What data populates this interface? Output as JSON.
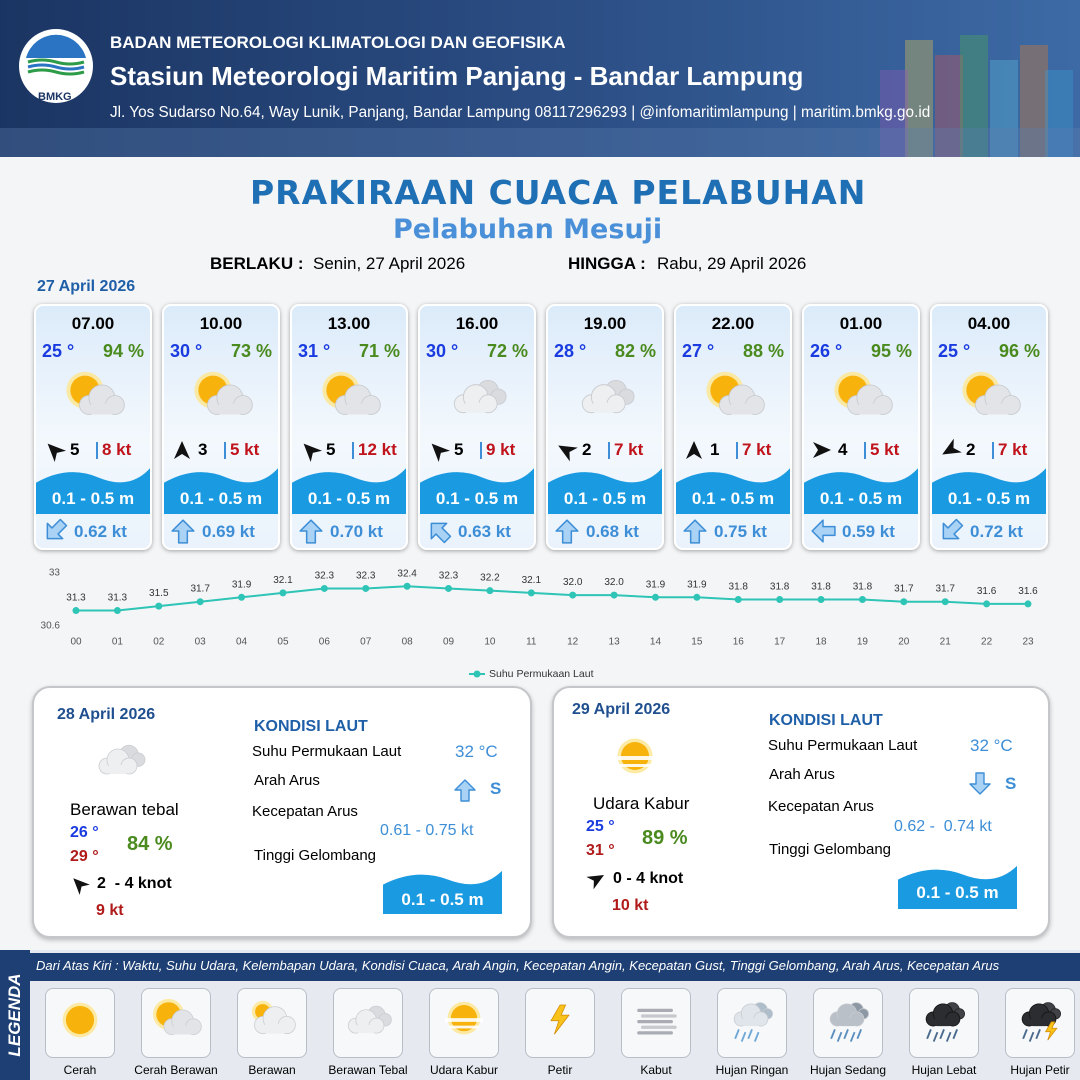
{
  "header": {
    "logo_text": "BMKG",
    "agency": "BADAN METEOROLOGI KLIMATOLOGI DAN GEOFISIKA",
    "station": "Stasiun Meteorologi Maritim Panjang - Bandar Lampung",
    "address": "Jl. Yos Sudarso No.64, Way Lunik, Panjang, Bandar Lampung 08117296293 | @infomaritimlampung | maritim.bmkg.go.id"
  },
  "title": "PRAKIRAAN CUACA PELABUHAN",
  "subtitle": "Pelabuhan Mesuji",
  "validity": {
    "from_label": "BERLAKU :",
    "from": "Senin, 27 April 2026",
    "to_label": "HINGGA :",
    "to": "Rabu, 29 April 2026"
  },
  "day1": {
    "date": "27 April 2026",
    "forecasts": [
      {
        "time": "07.00",
        "temp": "25 °",
        "humidity": "94 %",
        "wind": "5",
        "gust": "8 kt",
        "wave": "0.1 - 0.5 m",
        "current": "0.62 kt"
      },
      {
        "time": "10.00",
        "temp": "30 °",
        "humidity": "73 %",
        "wind": "3",
        "gust": "5 kt",
        "wave": "0.1 - 0.5 m",
        "current": "0.69 kt"
      },
      {
        "time": "13.00",
        "temp": "31 °",
        "humidity": "71 %",
        "wind": "5",
        "gust": "12 kt",
        "wave": "0.1 - 0.5 m",
        "current": "0.70 kt"
      },
      {
        "time": "16.00",
        "temp": "30 °",
        "humidity": "72 %",
        "wind": "5",
        "gust": "9 kt",
        "wave": "0.1 - 0.5 m",
        "current": "0.63 kt"
      },
      {
        "time": "19.00",
        "temp": "28 °",
        "humidity": "82 %",
        "wind": "2",
        "gust": "7 kt",
        "wave": "0.1 - 0.5 m",
        "current": "0.68 kt"
      },
      {
        "time": "22.00",
        "temp": "27 °",
        "humidity": "88 %",
        "wind": "1",
        "gust": "7 kt",
        "wave": "0.1 - 0.5 m",
        "current": "0.75 kt"
      },
      {
        "time": "01.00",
        "temp": "26 °",
        "humidity": "95 %",
        "wind": "4",
        "gust": "5 kt",
        "wave": "0.1 - 0.5 m",
        "current": "0.59 kt"
      },
      {
        "time": "04.00",
        "temp": "25 °",
        "humidity": "96 %",
        "wind": "2",
        "gust": "7 kt",
        "wave": "0.1 - 0.5 m",
        "current": "0.72 kt"
      }
    ]
  },
  "chart_data": {
    "type": "line",
    "categories": [
      "00",
      "01",
      "02",
      "03",
      "04",
      "05",
      "06",
      "07",
      "08",
      "09",
      "10",
      "11",
      "12",
      "13",
      "14",
      "15",
      "16",
      "17",
      "18",
      "19",
      "20",
      "21",
      "22",
      "23"
    ],
    "series": [
      {
        "name": "Suhu Permukaan Laut",
        "color": "#2ec4b6",
        "values": [
          31.3,
          31.3,
          31.5,
          31.7,
          31.9,
          32.1,
          32.3,
          32.3,
          32.4,
          32.3,
          32.2,
          32.1,
          32.0,
          32.0,
          31.9,
          31.9,
          31.8,
          31.8,
          31.8,
          31.8,
          31.7,
          31.7,
          31.6,
          31.6
        ],
        "value_labels": [
          "31.3",
          "31.3",
          "31.5",
          "31.7",
          "31.9",
          "32.1",
          "32.3",
          "32.3",
          "32.4",
          "32.3",
          "32.2",
          "32.1",
          "32.0",
          "32.0",
          "31.9",
          "31.9",
          "31.8",
          "31.8",
          "31.8",
          "31.8",
          "31.7",
          "31.7",
          "31.6",
          "31.6"
        ]
      }
    ],
    "ylim": [
      30.6,
      33
    ],
    "yticks": [
      30.6,
      33
    ]
  },
  "days": [
    {
      "date": "28 April 2026",
      "condition": "Berawan tebal",
      "temp_min": "26 °",
      "temp_max": "29 °",
      "humidity": "84 %",
      "wind": "2  - 4 knot",
      "gust": "9 kt",
      "sea": {
        "title": "KONDISI LAUT",
        "sst_label": "Suhu Permukaan Laut",
        "sst": "32 °C",
        "current_dir_label": "Arah Arus",
        "current_dir": "S",
        "current_speed_label": "Kecepatan Arus",
        "current_speed": "0.61 - 0.75 kt",
        "wave_label": "Tinggi Gelombang",
        "wave": "0.1 - 0.5 m"
      }
    },
    {
      "date": "29 April 2026",
      "condition": "Udara Kabur",
      "temp_min": "25 °",
      "temp_max": "31 °",
      "humidity": "89 %",
      "wind": "0 - 4 knot",
      "gust": "10 kt",
      "sea": {
        "title": "KONDISI LAUT",
        "sst_label": "Suhu Permukaan Laut",
        "sst": "32 °C",
        "current_dir_label": "Arah Arus",
        "current_dir": "S",
        "current_speed_label": "Kecepatan Arus",
        "current_speed": "0.62 -  0.74 kt",
        "wave_label": "Tinggi Gelombang",
        "wave": "0.1 - 0.5 m"
      }
    }
  ],
  "legend": {
    "title": "LEGENDA",
    "note": "Dari Atas Kiri : Waktu, Suhu Udara, Kelembapan Udara, Kondisi Cuaca, Arah Angin, Kecepatan Angin, Kecepatan Gust, Tinggi Gelombang, Arah Arus, Kecepatan Arus",
    "items": [
      "Cerah",
      "Cerah Berawan",
      "Berawan",
      "Berawan Tebal",
      "Udara Kabur",
      "Petir",
      "Kabut",
      "Hujan Ringan",
      "Hujan Sedang",
      "Hujan Lebat",
      "Hujan Petir"
    ]
  }
}
